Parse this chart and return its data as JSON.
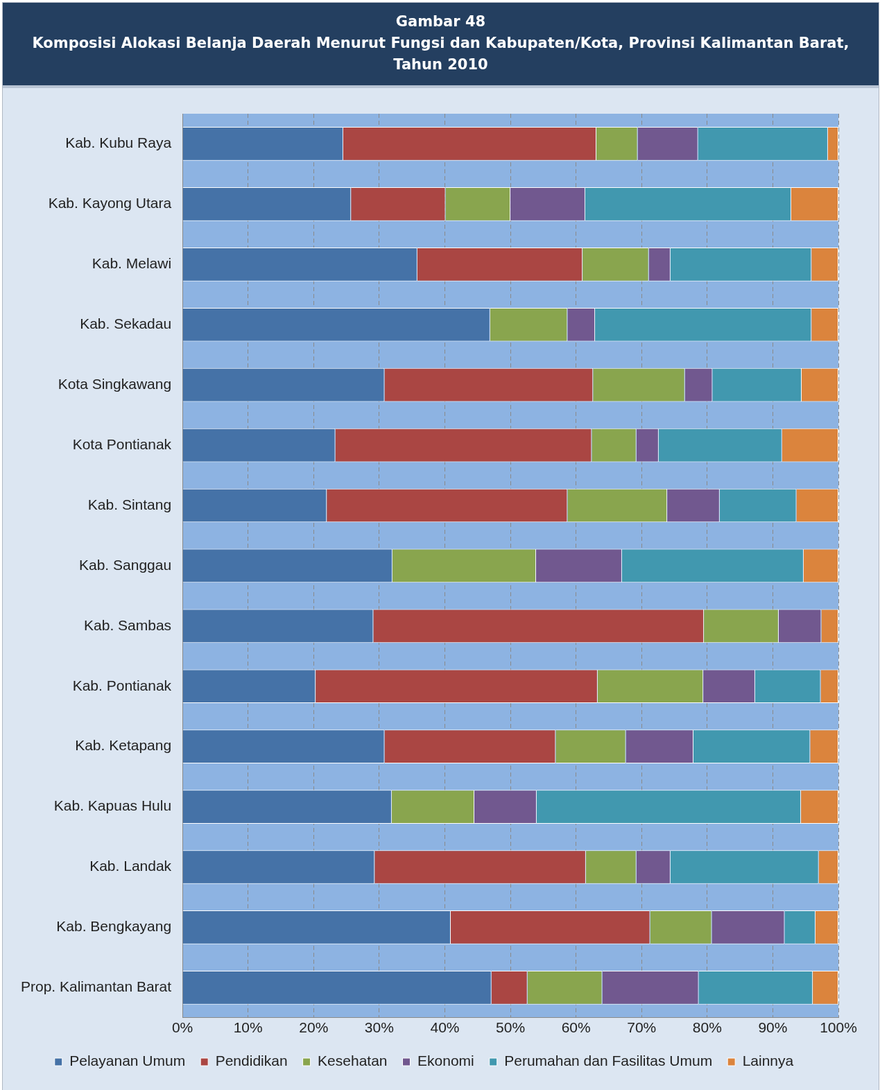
{
  "chart_data": {
    "type": "bar",
    "orientation": "horizontal",
    "stacked": true,
    "title": "Gambar 48",
    "subtitle": "Komposisi Alokasi Belanja Daerah Menurut Fungsi dan Kabupaten/Kota, Provinsi Kalimantan Barat, Tahun 2010",
    "categories": [
      "Kab. Kubu Raya",
      "Kab. Kayong Utara",
      "Kab. Melawi",
      "Kab. Sekadau",
      "Kota Singkawang",
      "Kota Pontianak",
      "Kab. Sintang",
      "Kab. Sanggau",
      "Kab. Sambas",
      "Kab. Pontianak",
      "Kab. Ketapang",
      "Kab. Kapuas Hulu",
      "Kab. Landak",
      "Kab. Bengkayang",
      "Prop. Kalimantan Barat"
    ],
    "series": [
      {
        "name": "Pelayanan Umum",
        "color": "#4572a7",
        "values": [
          24.5,
          25.7,
          35.8,
          46.9,
          30.8,
          23.3,
          22.0,
          32.0,
          29.1,
          20.3,
          30.8,
          31.9,
          29.3,
          40.9,
          47.1
        ]
      },
      {
        "name": "Pendidikan",
        "color": "#aa4643",
        "values": [
          38.6,
          14.4,
          25.2,
          0,
          31.8,
          39.1,
          36.7,
          0,
          50.4,
          43.0,
          26.1,
          0,
          32.2,
          30.4,
          5.5
        ]
      },
      {
        "name": "Kesehatan",
        "color": "#89a54e",
        "values": [
          6.3,
          9.9,
          10.1,
          11.8,
          14.0,
          6.8,
          15.2,
          21.9,
          11.4,
          16.1,
          10.7,
          12.6,
          7.7,
          9.4,
          11.4
        ]
      },
      {
        "name": "Ekonomi",
        "color": "#71588f",
        "values": [
          9.2,
          11.4,
          3.3,
          4.2,
          4.2,
          3.4,
          8.0,
          13.1,
          6.5,
          7.9,
          10.3,
          9.5,
          5.2,
          11.1,
          14.7
        ]
      },
      {
        "name": "Perumahan dan Fasilitas Umum",
        "color": "#4198af",
        "values": [
          19.8,
          31.4,
          21.5,
          33.0,
          13.6,
          18.8,
          11.7,
          27.7,
          0,
          10.0,
          17.8,
          40.3,
          22.6,
          4.7,
          17.4
        ]
      },
      {
        "name": "Lainnya",
        "color": "#db843d",
        "values": [
          1.6,
          7.2,
          4.1,
          4.1,
          5.6,
          8.6,
          6.4,
          5.3,
          2.6,
          2.7,
          4.3,
          5.7,
          3.0,
          3.5,
          3.9
        ]
      }
    ],
    "xlim": [
      0,
      100
    ],
    "xticks": [
      {
        "value": 0,
        "label": "0%"
      },
      {
        "value": 10,
        "label": "10%"
      },
      {
        "value": 20,
        "label": "20%"
      },
      {
        "value": 30,
        "label": "30%"
      },
      {
        "value": 40,
        "label": "40%"
      },
      {
        "value": 50,
        "label": "50%"
      },
      {
        "value": 60,
        "label": "60%"
      },
      {
        "value": 70,
        "label": "70%"
      },
      {
        "value": 80,
        "label": "80%"
      },
      {
        "value": 90,
        "label": "90%"
      },
      {
        "value": 100,
        "label": "100%"
      }
    ],
    "grid": "x",
    "legend": "bottom"
  }
}
